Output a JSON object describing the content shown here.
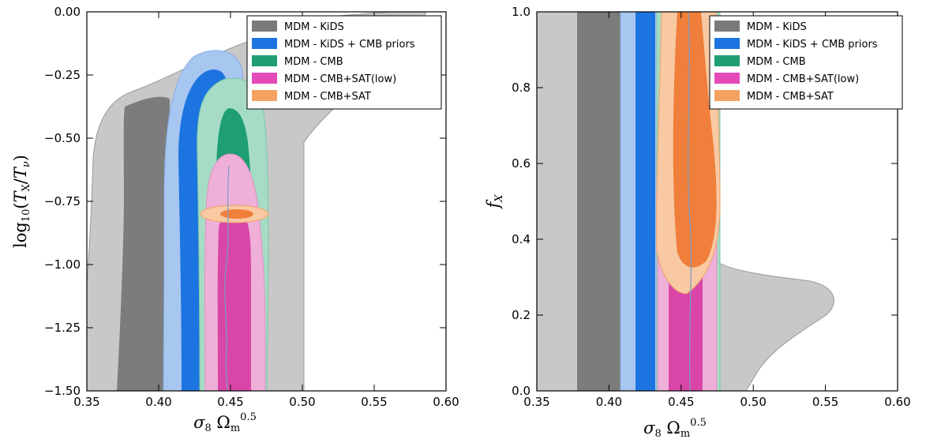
{
  "colors": {
    "KiDS": "#7a7a7a",
    "KiDS_CMB_priors": "#1c74e0",
    "CMB": "#1f9e74",
    "CMB_SAT_low": "#e54bb8",
    "CMB_SAT": "#f4a263",
    "SAT_core": "#ef7f3a"
  },
  "chart_data": [
    {
      "type": "contour",
      "panel": "left",
      "xlabel": "σ8 Ωm^0.5",
      "ylabel": "log10(TX/Tν)",
      "xlim": [
        0.35,
        0.6
      ],
      "ylim": [
        -1.5,
        0.0
      ],
      "xticks": [
        "0.35",
        "0.40",
        "0.45",
        "0.50",
        "0.55",
        "0.60"
      ],
      "yticks": [
        "0.00",
        "−0.25",
        "−0.50",
        "−0.75",
        "−1.00",
        "−1.25",
        "−1.50"
      ],
      "xtick_values": [
        0.35,
        0.4,
        0.45,
        0.5,
        0.55,
        0.6
      ],
      "ytick_values": [
        0.0,
        -0.25,
        -0.5,
        -0.75,
        -1.0,
        -1.25,
        -1.5
      ],
      "legend_position": "top-right",
      "legend": [
        "MDM - KiDS",
        "MDM - KiDS + CMB priors",
        "MDM - CMB",
        "MDM - CMB+SAT(low)",
        "MDM - CMB+SAT"
      ],
      "series": [
        {
          "name": "MDM - KiDS",
          "x_range_68": [
            0.372,
            0.408
          ],
          "x_range_95": [
            0.353,
            0.56
          ]
        },
        {
          "name": "MDM - KiDS + CMB priors",
          "x_range_68": [
            0.419,
            0.431
          ],
          "x_range_95": [
            0.405,
            0.44
          ],
          "y_top_95": -0.2
        },
        {
          "name": "MDM - CMB",
          "x_range_68": [
            0.44,
            0.461
          ],
          "x_range_95": [
            0.434,
            0.472
          ],
          "y_top_95": -0.27
        },
        {
          "name": "MDM - CMB+SAT(low)",
          "x_range_68": [
            0.44,
            0.46
          ],
          "x_range_95": [
            0.432,
            0.47
          ],
          "y_top_95": -0.55
        },
        {
          "name": "MDM - CMB+SAT",
          "center": [
            0.453,
            -0.8
          ],
          "x_range_95": [
            0.433,
            0.474
          ]
        }
      ]
    },
    {
      "type": "contour",
      "panel": "right",
      "xlabel": "σ8 Ωm^0.5",
      "ylabel": "fX",
      "xlim": [
        0.35,
        0.6
      ],
      "ylim": [
        0.0,
        1.0
      ],
      "xticks": [
        "0.35",
        "0.40",
        "0.45",
        "0.50",
        "0.55",
        "0.60"
      ],
      "yticks": [
        "0.0",
        "0.2",
        "0.4",
        "0.6",
        "0.8",
        "1.0"
      ],
      "xtick_values": [
        0.35,
        0.4,
        0.45,
        0.5,
        0.55,
        0.6
      ],
      "ytick_values": [
        0.0,
        0.2,
        0.4,
        0.6,
        0.8,
        1.0
      ],
      "legend_position": "top-right",
      "legend": [
        "MDM - KiDS",
        "MDM - KiDS + CMB priors",
        "MDM - CMB",
        "MDM - CMB+SAT(low)",
        "MDM - CMB+SAT"
      ],
      "series": [
        {
          "name": "MDM - KiDS",
          "x_range_68": [
            0.378,
            0.407
          ],
          "x_range_95": [
            0.352,
            0.555
          ]
        },
        {
          "name": "MDM - KiDS + CMB priors",
          "x_range_68": [
            0.417,
            0.431
          ],
          "x_range_95": [
            0.41,
            0.436
          ]
        },
        {
          "name": "MDM - CMB",
          "x_range_68": [
            0.442,
            0.462
          ],
          "x_range_95": [
            0.434,
            0.472
          ]
        },
        {
          "name": "MDM - CMB+SAT(low)",
          "x_range_68": [
            0.44,
            0.46
          ],
          "x_range_95": [
            0.432,
            0.47
          ]
        },
        {
          "name": "MDM - CMB+SAT",
          "x_range_68": [
            0.442,
            0.46
          ],
          "x_range_95": [
            0.432,
            0.47
          ],
          "y_bottom_68": 0.32,
          "y_bottom_95": 0.26
        }
      ]
    }
  ]
}
